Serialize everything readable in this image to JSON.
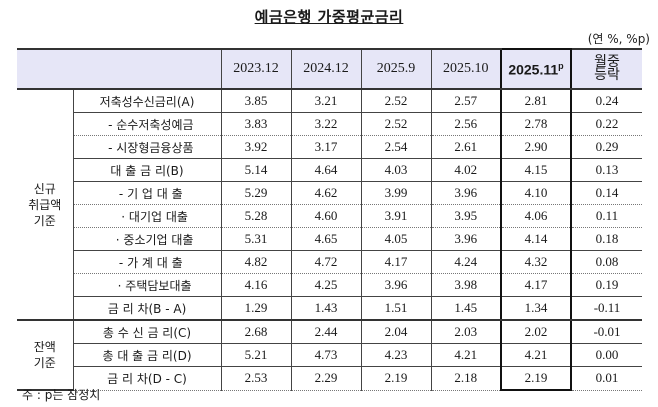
{
  "title": "예금은행 가중평균금리",
  "unit": "(연 %, %p)",
  "table": {
    "columns": [
      "2023.12",
      "2024.12",
      "2025.9",
      "2025.10",
      "2025.11",
      "월중 등락"
    ],
    "highlight_column_sup": "p",
    "groups": [
      {
        "label": "신규 취급액 기준",
        "label_lines": [
          "신규",
          "취급액",
          "기준"
        ]
      },
      {
        "label": "잔액 기준",
        "label_lines": [
          "잔액",
          "기준"
        ]
      }
    ],
    "rows": [
      {
        "group": 0,
        "label": "저축성수신금리(A)",
        "values": [
          "3.85",
          "3.21",
          "2.52",
          "2.57",
          "2.81",
          "0.24"
        ]
      },
      {
        "group": 0,
        "label": "  - 순수저축성예금",
        "values": [
          "3.83",
          "3.22",
          "2.52",
          "2.56",
          "2.78",
          "0.22"
        ]
      },
      {
        "group": 0,
        "label": "  - 시장형금융상품",
        "values": [
          "3.92",
          "3.17",
          "2.54",
          "2.61",
          "2.90",
          "0.29"
        ]
      },
      {
        "group": 0,
        "label": "대 출 금 리(B)",
        "values": [
          "5.14",
          "4.64",
          "4.03",
          "4.02",
          "4.15",
          "0.13"
        ]
      },
      {
        "group": 0,
        "label": "  - 기 업 대 출",
        "values": [
          "5.29",
          "4.62",
          "3.99",
          "3.96",
          "4.10",
          "0.14"
        ]
      },
      {
        "group": 0,
        "label": "    · 대기업 대출",
        "values": [
          "5.28",
          "4.60",
          "3.91",
          "3.95",
          "4.06",
          "0.11"
        ]
      },
      {
        "group": 0,
        "label": "    · 중소기업 대출",
        "values": [
          "5.31",
          "4.65",
          "4.05",
          "3.96",
          "4.14",
          "0.18"
        ]
      },
      {
        "group": 0,
        "label": "  - 가 계 대 출",
        "values": [
          "4.82",
          "4.72",
          "4.17",
          "4.24",
          "4.32",
          "0.08"
        ]
      },
      {
        "group": 0,
        "label": "    · 주택담보대출",
        "values": [
          "4.16",
          "4.25",
          "3.96",
          "3.98",
          "4.17",
          "0.19"
        ]
      },
      {
        "group": 0,
        "label": "금 리 차(B - A)",
        "values": [
          "1.29",
          "1.43",
          "1.51",
          "1.45",
          "1.34",
          "-0.11"
        ]
      },
      {
        "group": 1,
        "label": "총 수 신 금 리(C)",
        "values": [
          "2.68",
          "2.44",
          "2.04",
          "2.03",
          "2.02",
          "-0.01"
        ]
      },
      {
        "group": 1,
        "label": "총 대 출 금 리(D)",
        "values": [
          "5.21",
          "4.73",
          "4.23",
          "4.21",
          "4.21",
          "0.00"
        ]
      },
      {
        "group": 1,
        "label": "금 리 차(D - C)",
        "values": [
          "2.53",
          "2.29",
          "2.19",
          "2.18",
          "2.19",
          "0.01"
        ]
      }
    ]
  },
  "header": {
    "mom_line1": "월중",
    "mom_line2": "등락"
  },
  "note": "주 : p는 잠정치"
}
